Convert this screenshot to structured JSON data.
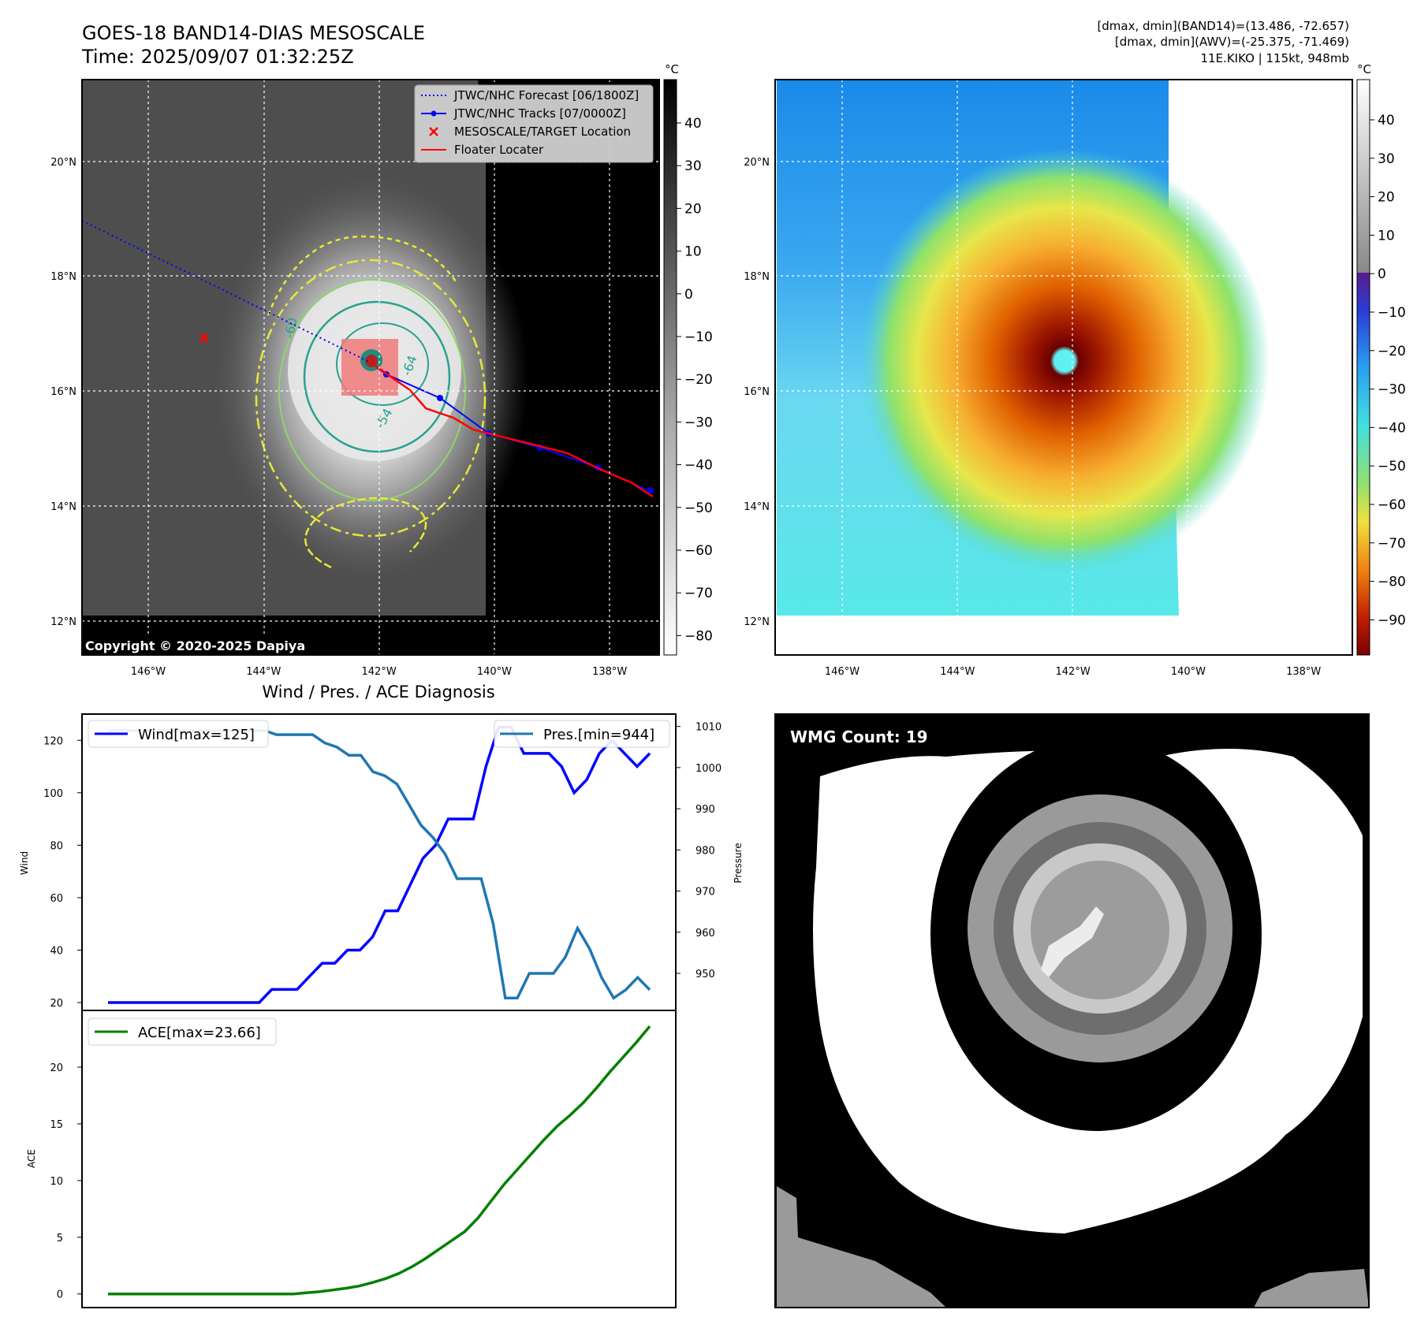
{
  "header": {
    "title_line1": "GOES-18 BAND14-DIAS MESOSCALE",
    "title_line2": "Time: 2025/09/07 01:32:25Z",
    "stats_line1": "[dmax, dmin](BAND14)=(13.486, -72.657)",
    "stats_line2": "[dmax, dmin](AWV)=(-25.375, -71.469)",
    "stats_line3": "11E.KIKO | 115kt, 948mb"
  },
  "map_axes": {
    "lon_labels": [
      "146°W",
      "144°W",
      "142°W",
      "140°W",
      "138°W"
    ],
    "lat_labels": [
      "20°N",
      "18°N",
      "16°N",
      "14°N",
      "12°N"
    ]
  },
  "ir_panel": {
    "legend": [
      {
        "label": "JTWC/NHC Forecast [06/1800Z]",
        "color": "#0000ff",
        "style": "dotted"
      },
      {
        "label": "JTWC/NHC Tracks [07/0000Z]",
        "color": "#0000ff",
        "style": "line-dot"
      },
      {
        "label": "MESOSCALE/TARGET Location",
        "color": "#ff0000",
        "style": "x"
      },
      {
        "label": "Floater Locater",
        "color": "#ff0000",
        "style": "line"
      }
    ],
    "contour_labels": [
      "-64",
      "-54",
      "-60"
    ],
    "copyright": "Copyright © 2020-2025 Dapiya",
    "colorbar_unit": "°C",
    "colorbar_ticks": [
      "40",
      "30",
      "20",
      "10",
      "0",
      "−10",
      "−20",
      "−30",
      "−40",
      "−50",
      "−60",
      "−70",
      "−80"
    ]
  },
  "awv_panel": {
    "colorbar_unit": "°C",
    "colorbar_ticks": [
      "40",
      "30",
      "20",
      "10",
      "0",
      "−10",
      "−20",
      "−30",
      "−40",
      "−50",
      "−60",
      "−70",
      "−80",
      "−90"
    ]
  },
  "diagnosis": {
    "title": "Wind / Pres. / ACE Diagnosis",
    "wind_legend": "Wind[max=125]",
    "pres_legend": "Pres.[min=944]",
    "ace_legend": "ACE[max=23.66]",
    "wind_ylabel": "Wind",
    "pres_ylabel": "Pressure",
    "ace_ylabel": "ACE"
  },
  "wmg_panel": {
    "label": "WMG Count: 19"
  },
  "chart_data": [
    {
      "type": "line",
      "name": "wind",
      "ylim": [
        17,
        130
      ],
      "yticks": [
        20,
        40,
        60,
        80,
        100,
        120
      ],
      "color": "#0000ff",
      "values": [
        20,
        20,
        20,
        20,
        20,
        20,
        20,
        20,
        20,
        20,
        20,
        20,
        20,
        25,
        25,
        25,
        30,
        35,
        35,
        40,
        40,
        45,
        55,
        55,
        65,
        75,
        80,
        90,
        90,
        90,
        110,
        125,
        125,
        115,
        115,
        115,
        110,
        100,
        105,
        115,
        120,
        115,
        110,
        115
      ]
    },
    {
      "type": "line",
      "name": "pressure",
      "ylim": [
        941,
        1013
      ],
      "yticks": [
        950,
        960,
        970,
        980,
        990,
        1000,
        1010
      ],
      "color": "#1f77b4",
      "values": [
        1009,
        1009,
        1009,
        1009,
        1009,
        1009,
        1009,
        1009,
        1009,
        1009,
        1009,
        1009,
        1009,
        1009,
        1008,
        1008,
        1008,
        1008,
        1006,
        1005,
        1003,
        1003,
        999,
        998,
        996,
        991,
        986,
        983,
        979,
        973,
        973,
        973,
        962,
        944,
        944,
        950,
        950,
        950,
        954,
        961,
        956,
        949,
        944,
        946,
        949,
        946
      ]
    },
    {
      "type": "line",
      "name": "ace",
      "ylim": [
        -1.2,
        25
      ],
      "yticks": [
        0,
        5,
        10,
        15,
        20
      ],
      "color": "#008000",
      "values": [
        0,
        0,
        0,
        0,
        0,
        0,
        0,
        0,
        0,
        0,
        0,
        0,
        0,
        0,
        0,
        0.1,
        0.2,
        0.35,
        0.5,
        0.7,
        1.0,
        1.35,
        1.8,
        2.4,
        3.1,
        3.9,
        4.7,
        5.5,
        6.7,
        8.2,
        9.7,
        11.0,
        12.3,
        13.6,
        14.8,
        15.8,
        16.9,
        18.2,
        19.6,
        20.9,
        22.2,
        23.6
      ]
    }
  ]
}
